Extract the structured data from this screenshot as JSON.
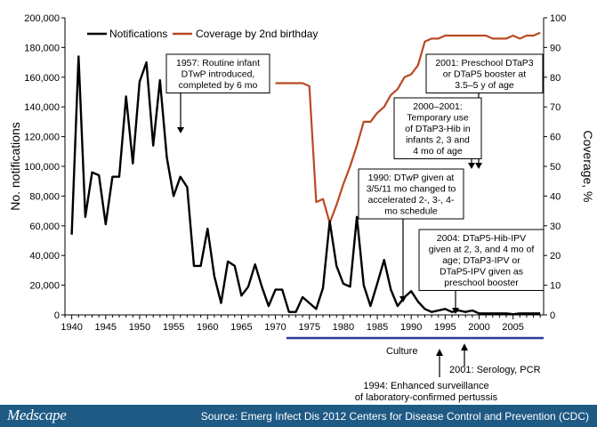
{
  "chart_data": {
    "type": "line",
    "x_ticks": [
      1940,
      1945,
      1950,
      1955,
      1960,
      1965,
      1970,
      1975,
      1980,
      1985,
      1990,
      1995,
      2000,
      2005
    ],
    "xlim": [
      1939,
      2009.5
    ],
    "y_left": {
      "label": "No. notifications",
      "range": [
        0,
        200000
      ],
      "ticks": [
        "0",
        "20,000",
        "40,000",
        "60,000",
        "80,000",
        "100,000",
        "120,000",
        "140,000",
        "160,000",
        "180,000",
        "200,000"
      ]
    },
    "y_right": {
      "label": "Coverage, %",
      "range": [
        0,
        100
      ],
      "ticks": [
        "0",
        "10",
        "20",
        "30",
        "40",
        "50",
        "60",
        "70",
        "80",
        "90",
        "100"
      ]
    },
    "legend": {
      "position": "top",
      "notifications": "Notifications",
      "coverage": "Coverage by 2nd birthday"
    },
    "series": [
      {
        "name": "Notifications",
        "color": "#000000",
        "axis": "left",
        "x": [
          1940,
          1941,
          1942,
          1943,
          1944,
          1945,
          1946,
          1947,
          1948,
          1949,
          1950,
          1951,
          1952,
          1953,
          1954,
          1955,
          1956,
          1957,
          1958,
          1959,
          1960,
          1961,
          1962,
          1963,
          1964,
          1965,
          1966,
          1967,
          1968,
          1969,
          1970,
          1971,
          1972,
          1973,
          1974,
          1975,
          1976,
          1977,
          1978,
          1979,
          1980,
          1981,
          1982,
          1983,
          1984,
          1985,
          1986,
          1987,
          1988,
          1989,
          1990,
          1991,
          1992,
          1993,
          1994,
          1995,
          1996,
          1997,
          1998,
          1999,
          2000,
          2001,
          2002,
          2003,
          2004,
          2005,
          2006,
          2007,
          2008,
          2009
        ],
        "values": [
          54000,
          174000,
          66000,
          96000,
          94000,
          61000,
          93000,
          93000,
          147000,
          102000,
          157000,
          170000,
          114000,
          158000,
          106000,
          80000,
          93000,
          86000,
          33000,
          33000,
          58000,
          26000,
          8000,
          36000,
          33000,
          13000,
          19000,
          34000,
          19000,
          6000,
          17000,
          17000,
          2000,
          2000,
          12000,
          8000,
          4000,
          18000,
          63000,
          33000,
          21000,
          19000,
          66000,
          20000,
          6000,
          21000,
          37000,
          17000,
          6000,
          12000,
          16000,
          9000,
          4000,
          2000,
          3000,
          4000,
          2000,
          3000,
          2000,
          3000,
          1000,
          1000,
          1000,
          1000,
          1000,
          500,
          1000,
          1000,
          1000,
          1000
        ]
      },
      {
        "name": "Coverage by 2nd birthday",
        "color": "#b84a22",
        "axis": "right",
        "x": [
          1970,
          1971,
          1972,
          1973,
          1974,
          1975,
          1976,
          1977,
          1978,
          1979,
          1980,
          1981,
          1982,
          1983,
          1984,
          1985,
          1986,
          1987,
          1988,
          1989,
          1990,
          1991,
          1992,
          1993,
          1994,
          1995,
          1996,
          1997,
          1998,
          1999,
          2000,
          2001,
          2002,
          2003,
          2004,
          2005,
          2006,
          2007,
          2008,
          2009
        ],
        "values": [
          78,
          78,
          78,
          78,
          78,
          77,
          38,
          39,
          31,
          37,
          44,
          50,
          57,
          65,
          65,
          68,
          70,
          74,
          76,
          80,
          81,
          84,
          92,
          93,
          93,
          94,
          94,
          94,
          94,
          94,
          94,
          94,
          93,
          93,
          93,
          94,
          93,
          94,
          94,
          95
        ]
      }
    ],
    "annotations": [
      {
        "lines": [
          "1957: Routine infant",
          "DTwP introduced,",
          "completed by 6 mo"
        ],
        "year": 1957
      },
      {
        "lines": [
          "2001: Preschool DTaP3",
          "or DTaP5 booster at",
          "3.5–5 y of age"
        ],
        "year": 2001
      },
      {
        "lines": [
          "2000–2001:",
          "Temporary use",
          "of DTaP3-Hib in",
          "infants 2, 3 and",
          "4 mo of age"
        ],
        "year": 2000
      },
      {
        "lines": [
          "1990: DTwP given at",
          "3/5/11 mo changed to",
          "accelerated 2-, 3-, 4-",
          "mo schedule"
        ],
        "year": 1990
      },
      {
        "lines": [
          "2004: DTaP5-Hib-IPV",
          "given at 2, 3, and 4 mo of",
          "age; DTaP3-IPV or",
          "DTaP5-IPV given as",
          "preschool booster"
        ],
        "year": 2004
      }
    ],
    "bottom_notes": {
      "culture": "Culture",
      "serology": "2001: Serology, PCR",
      "surveillance": [
        "1994: Enhanced surveillance",
        "of laboratory-confirmed pertussis"
      ]
    }
  },
  "footer": {
    "brand": "Medscape",
    "source": "Source: Emerg Infect Dis 2012 Centers for Disease Control and Prevention (CDC)"
  },
  "colors": {
    "coverage": "#b84a22",
    "culture_bar": "#2c3a9c",
    "footer_bg": "#1f5a85"
  }
}
